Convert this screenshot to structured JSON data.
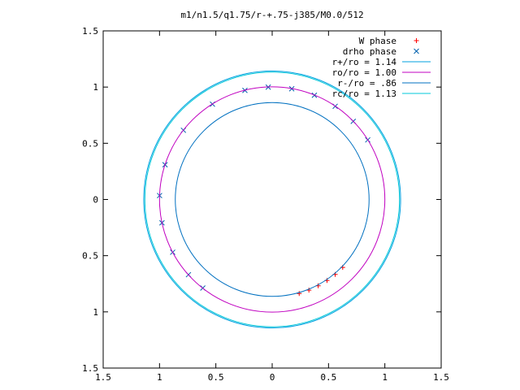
{
  "chart_data": {
    "type": "line",
    "title": "m1/n1.5/q1.75/r-+.75-j385/M0.0/512",
    "xlabel": "",
    "ylabel": "",
    "xlim": [
      -1.5,
      1.5
    ],
    "ylim": [
      -1.5,
      1.5
    ],
    "x_ticks": [
      -1.5,
      -1,
      -0.5,
      0,
      0.5,
      1,
      1.5
    ],
    "y_ticks": [
      -1.5,
      -1,
      -0.5,
      0,
      0.5,
      1,
      1.5
    ],
    "x_tick_labels": [
      "1.5",
      "1",
      "0.5",
      "0",
      "0.5",
      "1",
      "1.5"
    ],
    "y_tick_labels": [
      "1.5",
      "1",
      "0.5",
      "0",
      "0.5",
      "1",
      "1.5"
    ],
    "grid": false,
    "legend_position": "top-right",
    "series": [
      {
        "name": "W phase",
        "kind": "points",
        "marker": "+",
        "color": "#ff0000",
        "radius": 0.87,
        "angles_deg": [
          -74,
          -68,
          -62,
          -56,
          -50,
          -44
        ]
      },
      {
        "name": "drho phase",
        "kind": "points",
        "marker": "x",
        "color": "#0060ad",
        "radius": 1.0,
        "angles_deg": [
          32,
          44,
          56,
          68,
          80,
          92,
          104,
          122,
          142,
          162,
          178,
          192,
          208,
          222,
          232
        ]
      },
      {
        "name": "r+/ro = 1.14",
        "kind": "circle",
        "radius": 1.14,
        "color": "#00a0e0"
      },
      {
        "name": "ro/ro = 1.00",
        "kind": "circle",
        "radius": 1.0,
        "color": "#c000c0"
      },
      {
        "name": "r-/ro = .86",
        "kind": "circle",
        "radius": 0.86,
        "color": "#0070c0"
      },
      {
        "name": "rc/ro = 1.13",
        "kind": "circle",
        "radius": 1.13,
        "color": "#00c8d8"
      }
    ]
  }
}
